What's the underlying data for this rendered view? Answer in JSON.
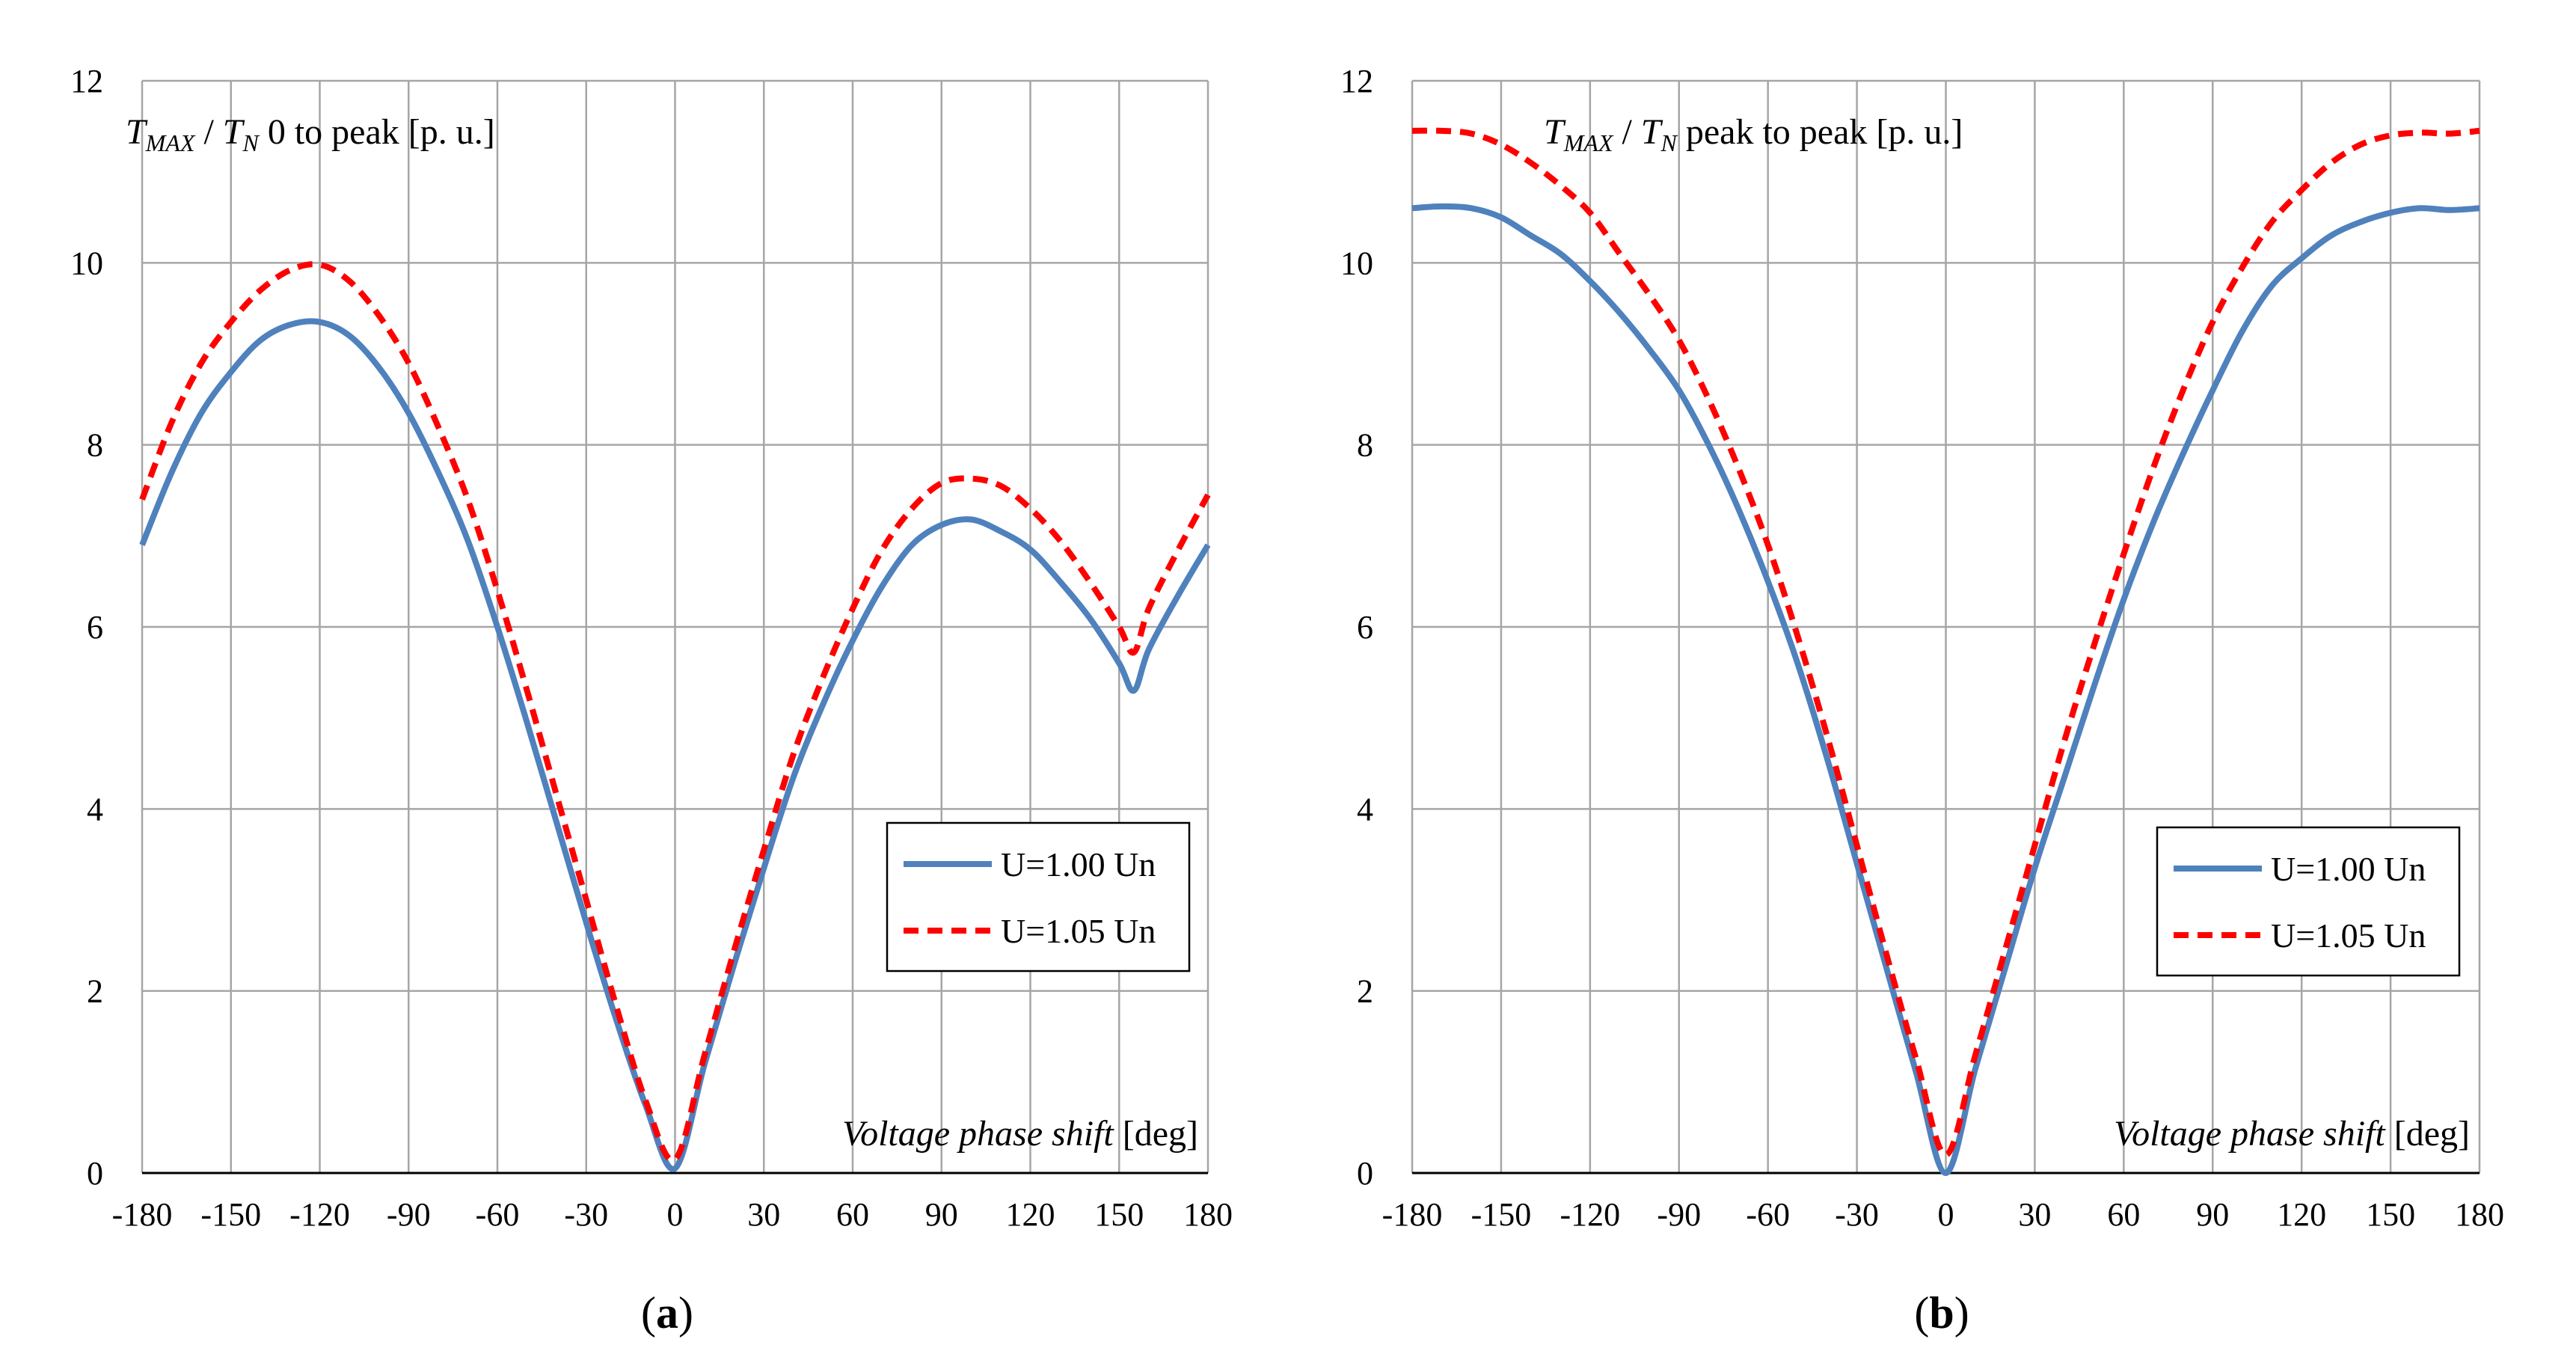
{
  "chart_data": [
    {
      "type": "line",
      "panel_label": "a",
      "title": "0 to peak [p. u.]",
      "title_T_max": "T",
      "title_T_max_sub": "MAX",
      "title_sep": " / ",
      "title_T_n": "T",
      "title_T_n_sub": "N",
      "xlabel_italic": "Voltage phase shift",
      "xlabel_unit": "[deg]",
      "xlim": [
        -180,
        180
      ],
      "ylim": [
        0,
        12
      ],
      "xticks": [
        -180,
        -150,
        -120,
        -90,
        -60,
        -30,
        0,
        30,
        60,
        90,
        120,
        150,
        180
      ],
      "yticks": [
        0,
        2,
        4,
        6,
        8,
        10,
        12
      ],
      "grid": true,
      "legend_position": "middle-right",
      "x": [
        -180,
        -170,
        -160,
        -150,
        -140,
        -130,
        -120,
        -110,
        -100,
        -90,
        -80,
        -70,
        -60,
        -50,
        -40,
        -30,
        -20,
        -10,
        0,
        10,
        20,
        30,
        40,
        50,
        60,
        70,
        80,
        90,
        100,
        110,
        120,
        130,
        140,
        150,
        155,
        160,
        170,
        180
      ],
      "series": [
        {
          "name": "U=1.00 Un",
          "color": "#4f81bd",
          "style": "solid",
          "values": [
            6.9,
            7.7,
            8.35,
            8.8,
            9.15,
            9.32,
            9.35,
            9.2,
            8.85,
            8.35,
            7.7,
            6.95,
            6.0,
            4.95,
            3.85,
            2.75,
            1.7,
            0.75,
            0.05,
            1.2,
            2.3,
            3.35,
            4.35,
            5.15,
            5.85,
            6.45,
            6.9,
            7.12,
            7.18,
            7.05,
            6.85,
            6.5,
            6.1,
            5.6,
            5.3,
            5.75,
            6.35,
            6.9
          ]
        },
        {
          "name": "U=1.05 Un",
          "color": "#ff0000",
          "style": "dashed",
          "values": [
            7.4,
            8.25,
            8.9,
            9.35,
            9.7,
            9.92,
            9.98,
            9.8,
            9.42,
            8.9,
            8.2,
            7.4,
            6.4,
            5.3,
            4.15,
            3.0,
            1.85,
            0.8,
            0.15,
            1.3,
            2.45,
            3.55,
            4.6,
            5.45,
            6.2,
            6.85,
            7.3,
            7.58,
            7.63,
            7.55,
            7.3,
            6.95,
            6.5,
            6.0,
            5.72,
            6.2,
            6.85,
            7.45
          ]
        }
      ]
    },
    {
      "type": "line",
      "panel_label": "b",
      "title": "peak to peak [p. u.]",
      "title_T_max": "T",
      "title_T_max_sub": "MAX",
      "title_sep": " / ",
      "title_T_n": "T",
      "title_T_n_sub": "N",
      "xlabel_italic": "Voltage phase shift",
      "xlabel_unit": "[deg]",
      "xlim": [
        -180,
        180
      ],
      "ylim": [
        0,
        12
      ],
      "xticks": [
        -180,
        -150,
        -120,
        -90,
        -60,
        -30,
        0,
        30,
        60,
        90,
        120,
        150,
        180
      ],
      "yticks": [
        0,
        2,
        4,
        6,
        8,
        10,
        12
      ],
      "grid": true,
      "legend_position": "middle-right",
      "x": [
        -180,
        -170,
        -160,
        -150,
        -140,
        -130,
        -120,
        -110,
        -100,
        -90,
        -80,
        -70,
        -60,
        -50,
        -40,
        -30,
        -20,
        -10,
        0,
        10,
        20,
        30,
        40,
        50,
        60,
        70,
        80,
        90,
        100,
        110,
        120,
        130,
        140,
        150,
        160,
        170,
        180
      ],
      "series": [
        {
          "name": "U=1.00 Un",
          "color": "#4f81bd",
          "style": "solid",
          "values": [
            10.6,
            10.62,
            10.6,
            10.5,
            10.3,
            10.1,
            9.8,
            9.45,
            9.05,
            8.6,
            8.0,
            7.3,
            6.5,
            5.6,
            4.55,
            3.4,
            2.25,
            1.1,
            0.0,
            1.15,
            2.25,
            3.35,
            4.35,
            5.35,
            6.3,
            7.15,
            7.9,
            8.6,
            9.25,
            9.75,
            10.05,
            10.3,
            10.45,
            10.55,
            10.6,
            10.58,
            10.6
          ]
        },
        {
          "name": "U=1.05 Un",
          "color": "#ff0000",
          "style": "dashed",
          "values": [
            11.45,
            11.45,
            11.42,
            11.3,
            11.1,
            10.85,
            10.55,
            10.1,
            9.65,
            9.15,
            8.5,
            7.75,
            6.9,
            5.9,
            4.8,
            3.6,
            2.4,
            1.25,
            0.2,
            1.3,
            2.45,
            3.6,
            4.75,
            5.8,
            6.8,
            7.75,
            8.6,
            9.35,
            9.95,
            10.45,
            10.8,
            11.1,
            11.3,
            11.4,
            11.43,
            11.42,
            11.45
          ]
        }
      ]
    }
  ]
}
